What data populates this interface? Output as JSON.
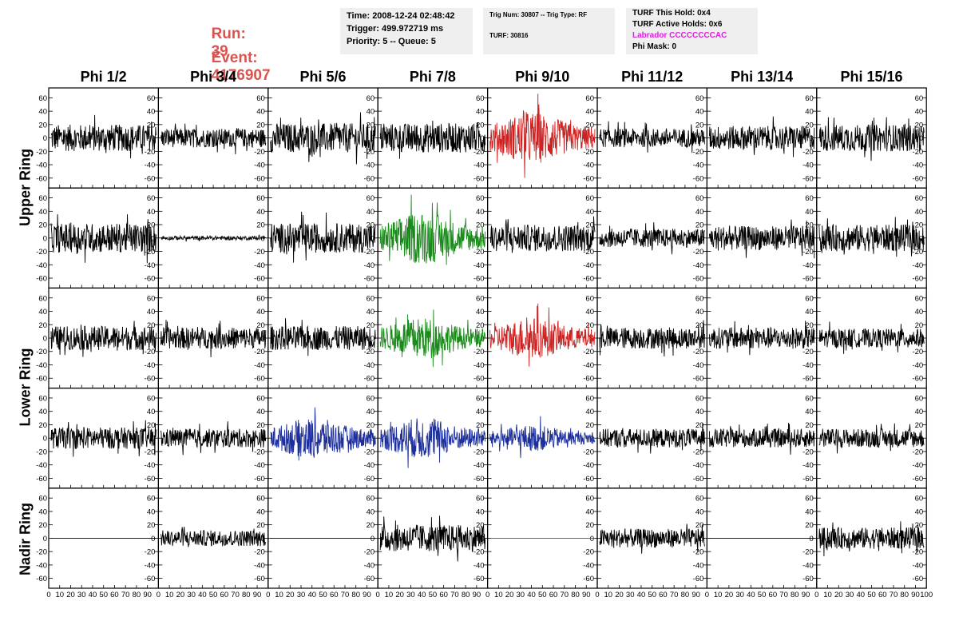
{
  "header": {
    "run_label": "Run:",
    "run_value": "39",
    "event_label": "Event:",
    "event_value": "4176907",
    "time_text": "Time: 2008-12-24 02:48:42",
    "trigger_text": "Trigger: 499.972719 ms",
    "priority_text": "Priority: 5 -- Queue: 5",
    "trig_num_text": "Trig Num: 30807 -- Trig Type: RF",
    "turf_text": "TURF: 30816",
    "turf_hold_text": "TURF This Hold: 0x4",
    "turf_active_text": "TURF Active Holds: 0x6",
    "labrador_text": "Labrador CCCCCCCCAC",
    "phi_mask_text": "Phi Mask: 0"
  },
  "columns": [
    "Phi 1/2",
    "Phi 3/4",
    "Phi 5/6",
    "Phi 7/8",
    "Phi 9/10",
    "Phi 11/12",
    "Phi 13/14",
    "Phi 15/16"
  ],
  "rings": [
    "Upper Ring",
    "Lower Ring",
    "Nadir Ring"
  ],
  "chart_data": {
    "type": "line",
    "xlim": [
      0,
      100
    ],
    "ylim": [
      -70,
      70
    ],
    "x_tick_labels": [
      "0",
      "10",
      "20",
      "30",
      "40",
      "50",
      "60",
      "70",
      "80",
      "90",
      "100"
    ],
    "y_tick_labels": [
      "-60",
      "-40",
      "-20",
      "0",
      "20",
      "40",
      "60"
    ],
    "colors": {
      "normal": "#000000",
      "red": "#cc2222",
      "green": "#1a8a1a",
      "blue": "#1c2f9c"
    },
    "panel_rows": [
      {
        "styles": [
          "normal",
          "normal",
          "normal",
          "normal",
          "red",
          "normal",
          "normal",
          "normal"
        ],
        "amplitudes": [
          20,
          14,
          22,
          22,
          28,
          14,
          18,
          20
        ]
      },
      {
        "styles": [
          "normal",
          "flat_small",
          "normal",
          "green",
          "normal",
          "normal",
          "normal",
          "normal"
        ],
        "amplitudes": [
          22,
          3,
          22,
          28,
          20,
          14,
          18,
          20
        ]
      },
      {
        "styles": [
          "normal",
          "normal",
          "normal",
          "green",
          "red",
          "normal",
          "normal",
          "normal"
        ],
        "amplitudes": [
          18,
          16,
          18,
          22,
          22,
          16,
          16,
          14
        ]
      },
      {
        "styles": [
          "normal",
          "normal",
          "blue",
          "blue",
          "blue",
          "normal",
          "normal",
          "normal"
        ],
        "amplitudes": [
          16,
          14,
          22,
          22,
          14,
          14,
          14,
          14
        ]
      },
      {
        "styles": [
          "flat",
          "normal",
          "flat",
          "normal",
          "flat_red",
          "normal",
          "flat",
          "normal"
        ],
        "amplitudes": [
          0,
          12,
          0,
          20,
          0,
          14,
          0,
          16
        ]
      }
    ]
  }
}
